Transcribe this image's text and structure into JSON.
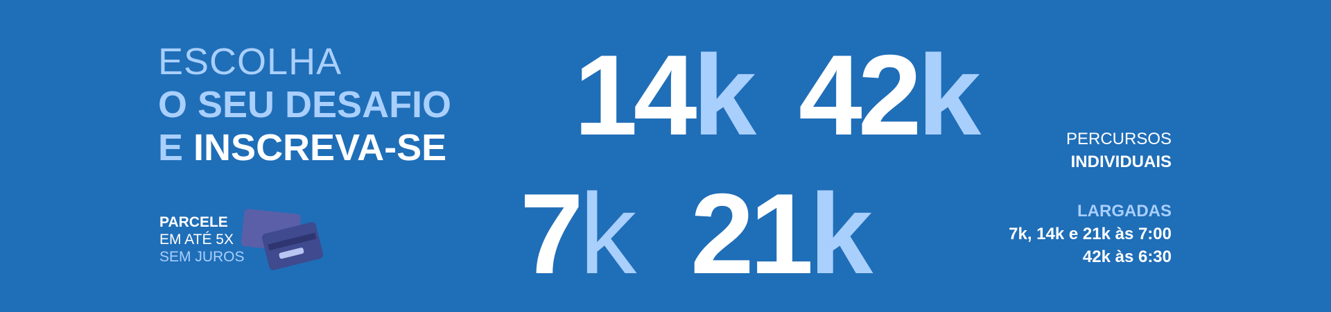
{
  "headline": {
    "line1": "ESCOLHA",
    "line2": "O SEU DESAFIO",
    "line3_accent": "E",
    "line3_rest": "INSCREVA-SE"
  },
  "installments": {
    "line1": "PARCELE",
    "line2": "EM ATÉ 5X",
    "line3": "SEM JUROS",
    "icon": "credit-card-icon"
  },
  "distances": [
    {
      "num": "14",
      "unit": "k"
    },
    {
      "num": "42",
      "unit": "k"
    },
    {
      "num": "7",
      "unit": "k"
    },
    {
      "num": "21",
      "unit": "k"
    }
  ],
  "info": {
    "routes_line1": "PERCURSOS",
    "routes_line2": "INDIVIDUAIS",
    "starts_title": "LARGADAS",
    "starts_line1": "7k, 14k e 21k às 7:00",
    "starts_line2": "42k às 6:30"
  },
  "colors": {
    "background": "#1f6eb8",
    "accent": "#a9cffc",
    "text": "#ffffff"
  }
}
